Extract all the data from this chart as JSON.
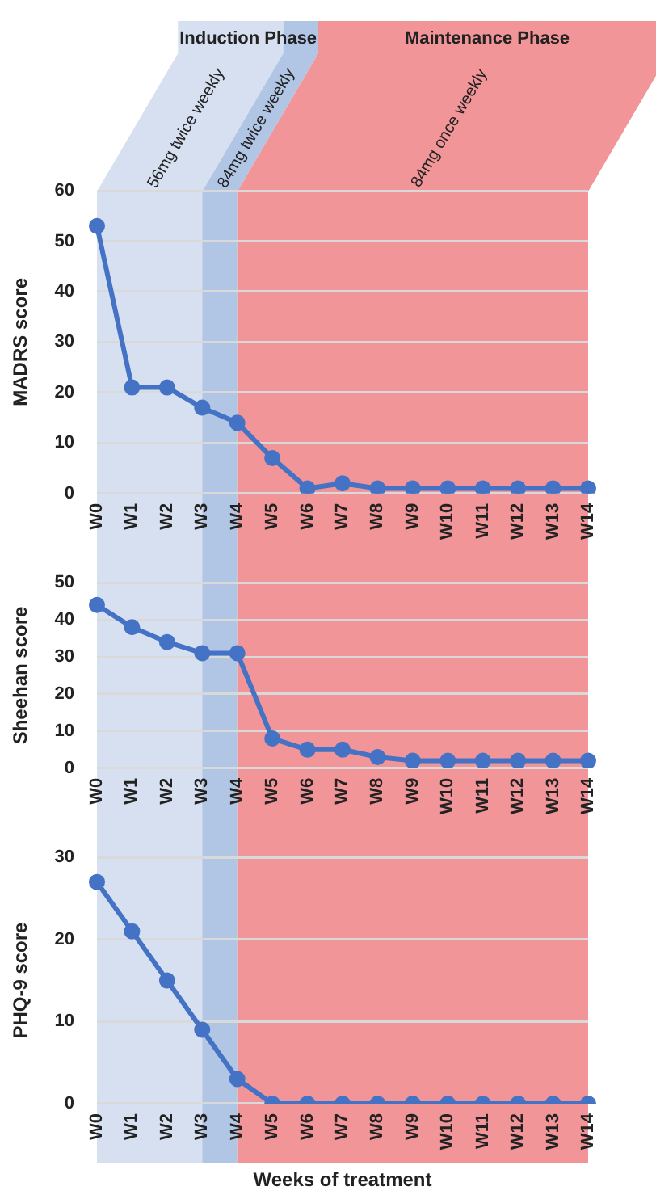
{
  "chart_data": [
    {
      "type": "line",
      "ylabel": "MADRS score",
      "categories": [
        "W0",
        "W1",
        "W2",
        "W3",
        "W4",
        "W5",
        "W6",
        "W7",
        "W8",
        "W9",
        "W10",
        "W11",
        "W12",
        "W13",
        "W14"
      ],
      "series": [
        {
          "color": "#4472c4",
          "values": [
            53,
            21,
            21,
            17,
            14,
            7,
            1,
            2,
            1,
            1,
            1,
            1,
            1,
            1,
            1
          ]
        }
      ],
      "ylim": [
        0,
        60
      ],
      "yticks": [
        0,
        10,
        20,
        30,
        40,
        50,
        60
      ],
      "grid": "y",
      "legend": false,
      "marker": "circle",
      "line_style": "solid",
      "bands": [
        {
          "axis": "x",
          "from": "W0",
          "to": "W3",
          "label": "56mg twice weekly",
          "color": "#d6e0f1"
        },
        {
          "axis": "x",
          "from": "W3",
          "to": "W4",
          "label": "84mg twice weekly",
          "color": "#b1c5e5"
        },
        {
          "axis": "x",
          "from": "W4",
          "to": "W14",
          "label": "84mg once weekly",
          "color": "#f19598"
        }
      ],
      "annotations": [
        "Induction Phase",
        "Maintenance Phase"
      ]
    },
    {
      "type": "line",
      "ylabel": "Sheehan score",
      "categories": [
        "W0",
        "W1",
        "W2",
        "W3",
        "W4",
        "W5",
        "W6",
        "W7",
        "W8",
        "W9",
        "W10",
        "W11",
        "W12",
        "W13",
        "W14"
      ],
      "series": [
        {
          "color": "#4472c4",
          "values": [
            44,
            38,
            34,
            31,
            31,
            8,
            5,
            5,
            3,
            2,
            2,
            2,
            2,
            2,
            2
          ]
        }
      ],
      "ylim": [
        0,
        50
      ],
      "yticks": [
        0,
        10,
        20,
        30,
        40,
        50
      ],
      "grid": "y",
      "legend": false,
      "marker": "circle",
      "line_style": "solid",
      "bands": [
        {
          "axis": "x",
          "from": "W0",
          "to": "W3",
          "color": "#d6e0f1"
        },
        {
          "axis": "x",
          "from": "W3",
          "to": "W4",
          "color": "#b1c5e5"
        },
        {
          "axis": "x",
          "from": "W4",
          "to": "W14",
          "color": "#f19598"
        }
      ]
    },
    {
      "type": "line",
      "ylabel": "PHQ-9 score",
      "xlabel": "Weeks of treatment",
      "categories": [
        "W0",
        "W1",
        "W2",
        "W3",
        "W4",
        "W5",
        "W6",
        "W7",
        "W8",
        "W9",
        "W10",
        "W11",
        "W12",
        "W13",
        "W14"
      ],
      "series": [
        {
          "color": "#4472c4",
          "values": [
            27,
            21,
            15,
            9,
            3,
            0,
            0,
            0,
            0,
            0,
            0,
            0,
            0,
            0,
            0
          ]
        }
      ],
      "ylim": [
        0,
        30
      ],
      "yticks": [
        0,
        10,
        20,
        30
      ],
      "grid": "y",
      "legend": false,
      "marker": "circle",
      "line_style": "solid",
      "bands": [
        {
          "axis": "x",
          "from": "W0",
          "to": "W3",
          "color": "#d6e0f1"
        },
        {
          "axis": "x",
          "from": "W3",
          "to": "W4",
          "color": "#b1c5e5"
        },
        {
          "axis": "x",
          "from": "W4",
          "to": "W14",
          "color": "#f19598"
        }
      ]
    }
  ]
}
